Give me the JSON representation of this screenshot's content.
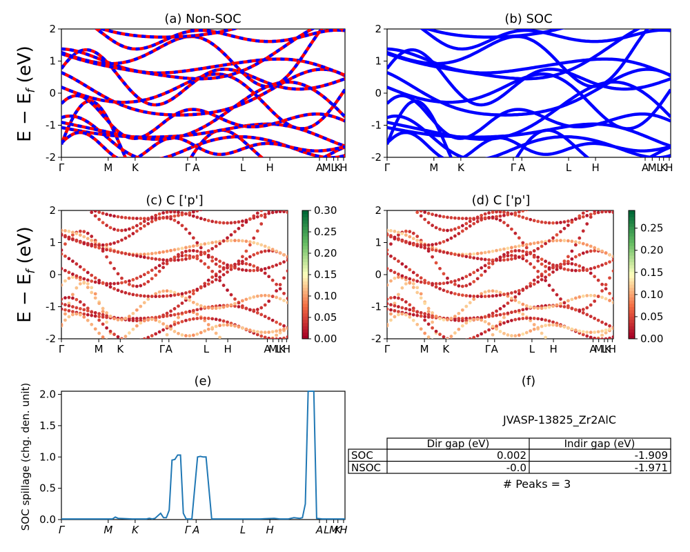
{
  "figure": {
    "ylabel_main": "E − E",
    "ylabel_sub": "f",
    "ylabel_unit": " (eV)"
  },
  "band_ticks": [
    "Γ",
    "M",
    "K",
    "Γ",
    "A",
    "L",
    "H",
    "A",
    "M",
    "L",
    "K",
    "H"
  ],
  "band_tick_positions": [
    0,
    0.165,
    0.26,
    0.445,
    0.475,
    0.64,
    0.735,
    0.91,
    0.935,
    0.96,
    0.975,
    0.995
  ],
  "chart_data": [
    {
      "id": "a",
      "type": "line",
      "title": "(a) Non-SOC",
      "ylabel": "E − E_f (eV)",
      "ylim": [
        -2,
        2
      ],
      "yticks": [
        -2,
        -1,
        0,
        1,
        2
      ],
      "series": [
        {
          "color": "#ff0000",
          "style": "solid"
        },
        {
          "color": "#0000ff",
          "style": "dashed"
        }
      ]
    },
    {
      "id": "b",
      "type": "line",
      "title": "(b) SOC",
      "ylim": [
        -2,
        2
      ],
      "yticks": [
        -2,
        -1,
        0,
        1,
        2
      ],
      "series": [
        {
          "color": "#0000ff",
          "style": "solid"
        }
      ]
    },
    {
      "id": "c",
      "type": "scatter",
      "title": "(c)  C ['p']",
      "ylabel": "E − E_f (eV)",
      "ylim": [
        -2,
        2
      ],
      "yticks": [
        -2,
        -1,
        0,
        1,
        2
      ],
      "colorbar": {
        "min": 0.0,
        "max": 0.3,
        "ticks": [
          "0.00",
          "0.05",
          "0.10",
          "0.15",
          "0.20",
          "0.25",
          "0.30"
        ],
        "colormap": "RdYlGn"
      }
    },
    {
      "id": "d",
      "type": "scatter",
      "title": "(d) C ['p']",
      "ylim": [
        -2,
        2
      ],
      "yticks": [
        -2,
        -1,
        0,
        1,
        2
      ],
      "colorbar": {
        "min": 0.0,
        "max": 0.29,
        "ticks": [
          "0.00",
          "0.05",
          "0.10",
          "0.15",
          "0.20",
          "0.25"
        ],
        "colormap": "RdYlGn"
      }
    },
    {
      "id": "e",
      "type": "line",
      "title": "(e)",
      "ylabel": "SOC spillage (chg. den. unit)",
      "ylim": [
        0,
        2.05
      ],
      "yticks": [
        "0.0",
        "0.5",
        "1.0",
        "1.5",
        "2.0"
      ],
      "xticks": [
        "Γ",
        "M",
        "K",
        "Γ",
        "A",
        "L",
        "H",
        "A",
        "L",
        "M",
        "K",
        "H"
      ],
      "series": [
        {
          "color": "#1f77b4",
          "x": [
            0,
            0.05,
            0.1,
            0.15,
            0.18,
            0.19,
            0.2,
            0.25,
            0.3,
            0.31,
            0.32,
            0.33,
            0.35,
            0.36,
            0.37,
            0.38,
            0.39,
            0.4,
            0.41,
            0.42,
            0.43,
            0.44,
            0.45,
            0.46,
            0.48,
            0.49,
            0.5,
            0.51,
            0.53,
            0.54,
            0.55,
            0.6,
            0.7,
            0.75,
            0.77,
            0.8,
            0.82,
            0.84,
            0.85,
            0.86,
            0.87,
            0.88,
            0.89,
            0.9,
            0.92,
            1.0
          ],
          "y": [
            0.01,
            0.01,
            0.01,
            0.01,
            0.01,
            0.04,
            0.02,
            0.01,
            0.01,
            0.02,
            0.01,
            0.02,
            0.1,
            0.03,
            0.03,
            0.15,
            0.95,
            0.96,
            1.03,
            1.03,
            0.1,
            0.01,
            0.01,
            0.01,
            1.0,
            1.01,
            1.0,
            1.0,
            0.01,
            0.01,
            0.01,
            0.01,
            0.01,
            0.02,
            0.01,
            0.01,
            0.03,
            0.02,
            0.03,
            0.25,
            2.05,
            2.05,
            2.05,
            0.02,
            0.01,
            0.01
          ]
        }
      ]
    },
    {
      "id": "f",
      "type": "table",
      "title": "(f)",
      "caption": "JVASP-13825_Zr2AlC",
      "columns": [
        "Dir gap (eV)",
        "Indir gap (eV)"
      ],
      "rows": [
        {
          "label": "SOC",
          "values": [
            "0.002",
            "-1.909"
          ]
        },
        {
          "label": "NSOC",
          "values": [
            "-0.0",
            "-1.971"
          ]
        }
      ],
      "footer": "# Peaks = 3"
    }
  ]
}
